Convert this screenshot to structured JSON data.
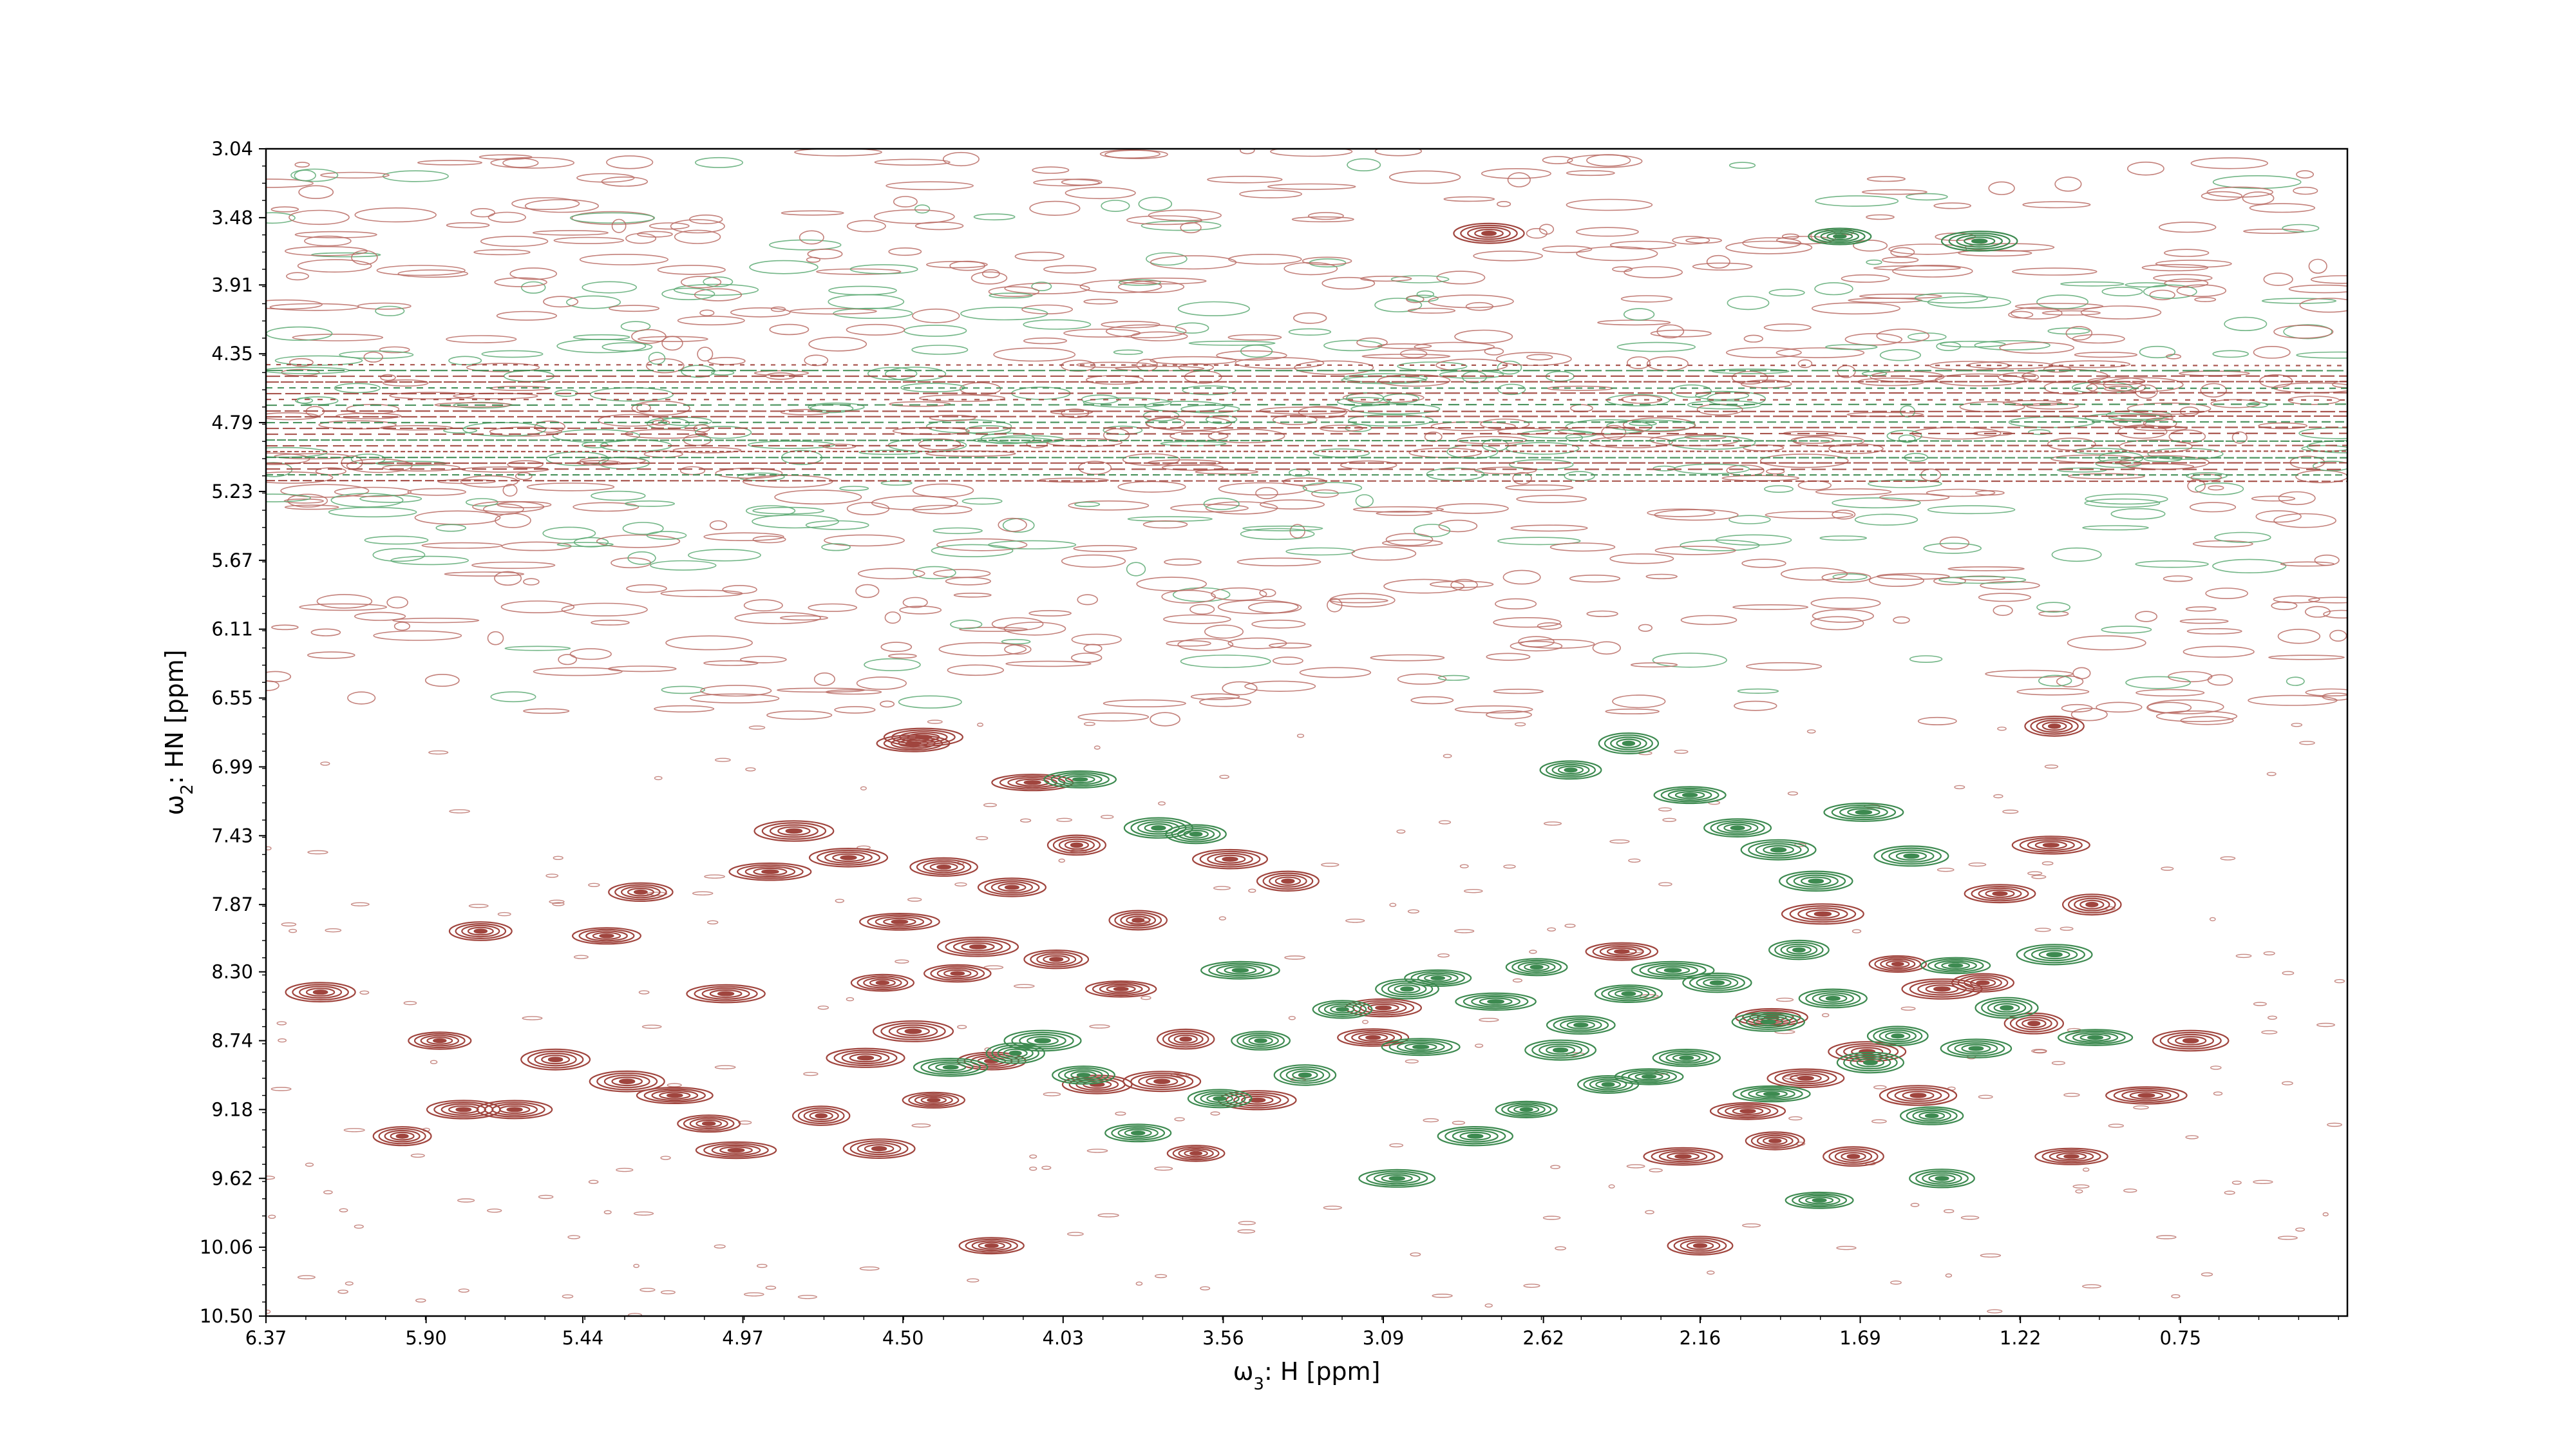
{
  "chart_data": {
    "type": "contour",
    "xlabel_symbol": "ω",
    "xlabel_sub": "3",
    "xlabel_rest": ": H [ppm]",
    "ylabel_symbol": "ω",
    "ylabel_sub": "2",
    "ylabel_rest": ": HN [ppm]",
    "x_ticks": [
      "6.37",
      "5.90",
      "5.44",
      "4.97",
      "4.50",
      "4.03",
      "3.56",
      "3.09",
      "2.62",
      "2.16",
      "1.69",
      "1.22",
      "0.75"
    ],
    "y_ticks": [
      "3.04",
      "3.48",
      "3.91",
      "4.35",
      "4.79",
      "5.23",
      "5.67",
      "6.11",
      "6.55",
      "6.99",
      "7.43",
      "7.87",
      "8.30",
      "8.74",
      "9.18",
      "9.62",
      "10.06",
      "10.50"
    ],
    "xlim": [
      6.37,
      0.26
    ],
    "ylim": [
      10.5,
      3.04
    ],
    "grid": false,
    "colors": {
      "positive": "#a0453e",
      "negative": "#3d8a50",
      "noise_positive": "#b86a63",
      "noise_negative": "#5aa972"
    },
    "series": [
      {
        "sign": "positive",
        "peaks": [
          [
            6.21,
            8.43
          ],
          [
            5.97,
            9.35
          ],
          [
            5.86,
            8.74
          ],
          [
            5.79,
            9.18
          ],
          [
            5.74,
            8.04
          ],
          [
            5.64,
            9.18
          ],
          [
            5.52,
            8.86
          ],
          [
            5.37,
            8.07
          ],
          [
            5.31,
            9.0
          ],
          [
            5.27,
            7.79
          ],
          [
            5.17,
            9.09
          ],
          [
            5.07,
            9.27
          ],
          [
            4.99,
            9.44
          ],
          [
            5.02,
            8.44
          ],
          [
            4.89,
            7.66
          ],
          [
            4.82,
            7.4
          ],
          [
            4.74,
            9.22
          ],
          [
            4.66,
            7.57
          ],
          [
            4.61,
            8.85
          ],
          [
            4.56,
            8.37
          ],
          [
            4.57,
            9.43
          ],
          [
            4.51,
            7.98
          ],
          [
            4.47,
            8.68
          ],
          [
            4.41,
            9.12
          ],
          [
            4.38,
            7.63
          ],
          [
            4.34,
            8.31
          ],
          [
            4.28,
            8.14
          ],
          [
            4.24,
            8.87
          ],
          [
            4.18,
            7.76
          ],
          [
            4.12,
            7.09
          ],
          [
            4.05,
            8.22
          ],
          [
            3.99,
            7.49
          ],
          [
            3.93,
            9.02
          ],
          [
            3.86,
            8.41
          ],
          [
            3.81,
            7.97
          ],
          [
            3.74,
            9.0
          ],
          [
            3.67,
            8.73
          ],
          [
            3.64,
            9.46
          ],
          [
            3.54,
            7.58
          ],
          [
            3.46,
            9.12
          ],
          [
            3.37,
            7.72
          ],
          [
            3.12,
            8.72
          ],
          [
            3.09,
            8.53
          ],
          [
            4.44,
            6.8
          ],
          [
            4.47,
            6.84
          ],
          [
            4.24,
            10.05
          ],
          [
            2.39,
            8.17
          ],
          [
            2.02,
            9.19
          ],
          [
            1.94,
            9.38
          ],
          [
            1.85,
            8.98
          ],
          [
            1.8,
            7.93
          ],
          [
            1.67,
            8.81
          ],
          [
            1.58,
            8.25
          ],
          [
            1.45,
            8.41
          ],
          [
            1.33,
            8.37
          ],
          [
            1.28,
            7.8
          ],
          [
            1.18,
            8.63
          ],
          [
            1.13,
            7.49
          ],
          [
            1.07,
            9.48
          ],
          [
            1.01,
            7.87
          ],
          [
            0.85,
            9.09
          ],
          [
            0.72,
            8.74
          ],
          [
            1.12,
            6.73
          ],
          [
            1.71,
            9.48
          ],
          [
            2.21,
            9.48
          ],
          [
            2.16,
            10.05
          ],
          [
            2.78,
            3.58
          ],
          [
            1.95,
            8.59
          ],
          [
            1.52,
            9.09
          ]
        ]
      },
      {
        "sign": "negative",
        "peaks": [
          [
            3.98,
            7.07
          ],
          [
            3.75,
            7.38
          ],
          [
            3.64,
            7.42
          ],
          [
            3.51,
            8.29
          ],
          [
            3.45,
            8.74
          ],
          [
            3.32,
            8.96
          ],
          [
            3.21,
            8.54
          ],
          [
            3.02,
            8.41
          ],
          [
            2.93,
            8.34
          ],
          [
            2.76,
            8.49
          ],
          [
            2.64,
            8.27
          ],
          [
            2.51,
            8.64
          ],
          [
            2.37,
            8.44
          ],
          [
            2.24,
            8.29
          ],
          [
            2.11,
            8.37
          ],
          [
            1.96,
            8.62
          ],
          [
            1.87,
            8.16
          ],
          [
            1.77,
            8.47
          ],
          [
            1.66,
            8.88
          ],
          [
            1.58,
            8.71
          ],
          [
            1.48,
            9.22
          ],
          [
            1.41,
            8.26
          ],
          [
            1.35,
            8.79
          ],
          [
            1.26,
            8.53
          ],
          [
            1.12,
            8.19
          ],
          [
            1.0,
            8.72
          ],
          [
            2.54,
            7.01
          ],
          [
            2.37,
            6.84
          ],
          [
            2.19,
            7.17
          ],
          [
            2.05,
            7.38
          ],
          [
            1.93,
            7.52
          ],
          [
            1.82,
            7.72
          ],
          [
            1.68,
            7.28
          ],
          [
            1.54,
            7.56
          ],
          [
            4.36,
            8.91
          ],
          [
            4.17,
            8.82
          ],
          [
            3.97,
            8.96
          ],
          [
            3.81,
            9.33
          ],
          [
            3.57,
            9.11
          ],
          [
            2.98,
            8.78
          ],
          [
            2.82,
            9.35
          ],
          [
            2.67,
            9.18
          ],
          [
            2.43,
            9.02
          ],
          [
            2.31,
            8.97
          ],
          [
            2.2,
            8.85
          ],
          [
            1.45,
            9.62
          ],
          [
            1.81,
            9.76
          ],
          [
            3.05,
            9.62
          ],
          [
            4.09,
            8.74
          ],
          [
            1.34,
            3.63
          ],
          [
            1.75,
            3.6
          ],
          [
            1.95,
            9.08
          ],
          [
            2.57,
            8.8
          ]
        ]
      }
    ],
    "noise_band_ppm": [
      3.04,
      6.7
    ]
  }
}
